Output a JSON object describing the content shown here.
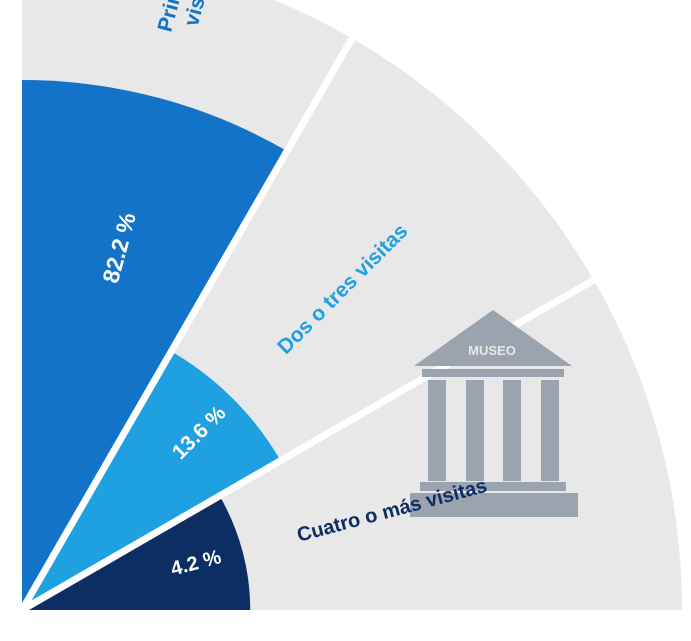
{
  "chart_data": {
    "type": "pie",
    "categories": [
      "Primera visita",
      "Dos o tres visitas",
      "Cuatro o más visitas"
    ],
    "values": [
      82.2,
      13.6,
      4.2
    ],
    "value_labels": [
      "82.2 %",
      "13.6 %",
      "4.2 %"
    ],
    "category_labels": [
      [
        "Primera",
        "visita"
      ],
      [
        "Dos o tres visitas"
      ],
      [
        "Cuatro o más visitas"
      ]
    ],
    "title": ""
  },
  "museum_icon": {
    "label": "MUSEO",
    "icon": "museum-icon"
  },
  "colors": {
    "slices": [
      "#1273c9",
      "#1fa0e0",
      "#0d2e63"
    ],
    "category_label_colors": [
      "#1273c9",
      "#1fa0e0",
      "#0d2e63"
    ],
    "background_sector": "#e8e8e8",
    "separator": "#ffffff",
    "icon": "#9ba3ae",
    "value_text": "#ffffff"
  }
}
